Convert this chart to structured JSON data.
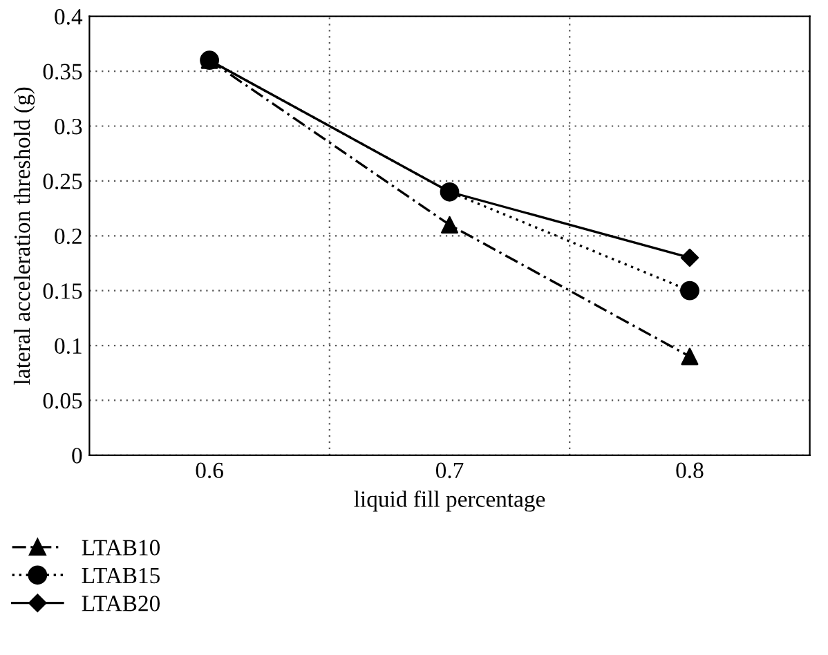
{
  "chart_data": {
    "type": "line",
    "xlabel": "liquid fill percentage",
    "ylabel": "lateral acceleration threshold (g)",
    "categories": [
      "0.6",
      "0.7",
      "0.8"
    ],
    "series": [
      {
        "name": "LTAB10",
        "color": "#000000",
        "values": [
          0.36,
          0.21,
          0.09
        ],
        "marker": "triangle",
        "line_style": "dashed"
      },
      {
        "name": "LTAB15",
        "color": "#000000",
        "values": [
          0.36,
          0.24,
          0.15
        ],
        "marker": "circle",
        "line_style": "dotted"
      },
      {
        "name": "LTAB20",
        "color": "#000000",
        "values": [
          0.36,
          0.24,
          0.18
        ],
        "marker": "diamond",
        "line_style": "solid"
      }
    ],
    "ylim": [
      0,
      0.4
    ],
    "yticks": [
      0,
      0.05,
      0.1,
      0.15,
      0.2,
      0.25,
      0.3,
      0.35,
      0.4
    ],
    "grid": true,
    "legend": "bottom left"
  }
}
